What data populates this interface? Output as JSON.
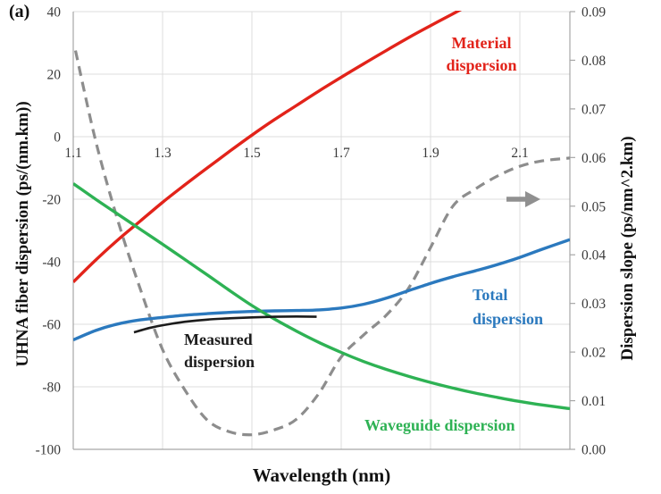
{
  "figure": {
    "panel_label": "(a)"
  },
  "chart_data": {
    "type": "line",
    "title": "",
    "xlabel": "Wavelength (nm)",
    "ylabel_left": "UHNA fiber dispersion (ps/(nm.km))",
    "ylabel_right": "Dispersion slope (ps/nm^2.km)",
    "xlim": [
      1.1,
      2.212
    ],
    "ylim_left": [
      -100,
      40
    ],
    "ylim_right": [
      0,
      0.09
    ],
    "grid": true,
    "legend_position": "inline-annotations",
    "x_ticks": {
      "values": [
        1.1,
        1.3,
        1.5,
        1.7,
        1.9,
        2.1
      ],
      "labels": [
        "1.1",
        "1.3",
        "1.5",
        "1.7",
        "1.9",
        "2.1"
      ]
    },
    "y_ticks_left": {
      "values": [
        40,
        20,
        0,
        -20,
        -40,
        -60,
        -80,
        -100
      ],
      "labels": [
        "40",
        "20",
        "0",
        "-20",
        "-40",
        "-60",
        "-80",
        "-100"
      ]
    },
    "y_ticks_right": {
      "values": [
        0.09,
        0.08,
        0.07,
        0.06,
        0.05,
        0.04,
        0.03,
        0.02,
        0.01,
        0.0
      ],
      "labels": [
        "0.09",
        "0.08",
        "0.07",
        "0.06",
        "0.05",
        "0.04",
        "0.03",
        "0.02",
        "0.01",
        "0.00"
      ]
    },
    "series": [
      {
        "name": "Dispersion slope",
        "axis": "right",
        "color": "#8d8d8d",
        "dash": true,
        "x": [
          1.105,
          1.15,
          1.2,
          1.25,
          1.3,
          1.35,
          1.4,
          1.45,
          1.5,
          1.55,
          1.6,
          1.65,
          1.7,
          1.75,
          1.8,
          1.85,
          1.9,
          1.95,
          2.0,
          2.05,
          2.1,
          2.15,
          2.212
        ],
        "y": [
          0.082,
          0.0635,
          0.047,
          0.033,
          0.0205,
          0.0122,
          0.006,
          0.0036,
          0.003,
          0.004,
          0.0062,
          0.0115,
          0.019,
          0.0235,
          0.0275,
          0.033,
          0.0415,
          0.05,
          0.0535,
          0.0562,
          0.0582,
          0.0593,
          0.0599
        ]
      },
      {
        "name": "Material dispersion",
        "axis": "left",
        "color": "#e2231a",
        "dash": false,
        "x": [
          1.1,
          1.15,
          1.2,
          1.25,
          1.3,
          1.35,
          1.4,
          1.45,
          1.5,
          1.55,
          1.6,
          1.65,
          1.7,
          1.75,
          1.8,
          1.85,
          1.9,
          1.95,
          1.985
        ],
        "y": [
          -46.5,
          -39.5,
          -33.0,
          -27.0,
          -21.0,
          -15.4,
          -10.0,
          -4.7,
          0.5,
          5.4,
          10.0,
          14.6,
          19.0,
          23.3,
          27.5,
          31.6,
          35.5,
          39.3,
          42.0
        ]
      },
      {
        "name": "Total dispersion",
        "axis": "left",
        "color": "#2b79be",
        "dash": false,
        "x": [
          1.1,
          1.15,
          1.2,
          1.25,
          1.3,
          1.35,
          1.4,
          1.45,
          1.5,
          1.55,
          1.6,
          1.65,
          1.7,
          1.75,
          1.8,
          1.85,
          1.9,
          1.95,
          2.0,
          2.05,
          2.1,
          2.15,
          2.212
        ],
        "y": [
          -65.0,
          -62.0,
          -59.9,
          -58.6,
          -57.8,
          -57.1,
          -56.6,
          -56.2,
          -55.9,
          -55.7,
          -55.6,
          -55.4,
          -54.8,
          -53.6,
          -51.7,
          -49.3,
          -46.9,
          -44.8,
          -42.9,
          -40.9,
          -38.6,
          -36.0,
          -32.9
        ]
      },
      {
        "name": "Waveguide dispersion",
        "axis": "left",
        "color": "#2eb254",
        "dash": false,
        "x": [
          1.1,
          1.15,
          1.2,
          1.25,
          1.3,
          1.35,
          1.4,
          1.45,
          1.5,
          1.55,
          1.6,
          1.65,
          1.7,
          1.75,
          1.8,
          1.85,
          1.9,
          1.95,
          2.0,
          2.05,
          2.1,
          2.15,
          2.212
        ],
        "y": [
          -15.0,
          -20.0,
          -24.8,
          -29.6,
          -34.4,
          -39.3,
          -44.2,
          -49.2,
          -54.0,
          -58.3,
          -62.2,
          -65.8,
          -69.0,
          -71.9,
          -74.4,
          -76.6,
          -78.6,
          -80.4,
          -82.0,
          -83.4,
          -84.7,
          -85.8,
          -87.0
        ]
      },
      {
        "name": "Measured dispersion",
        "axis": "left",
        "color": "#1c1c1c",
        "dash": false,
        "x": [
          1.236,
          1.27,
          1.3,
          1.35,
          1.4,
          1.45,
          1.5,
          1.55,
          1.6,
          1.645
        ],
        "y": [
          -62.6,
          -61.2,
          -60.3,
          -59.2,
          -58.5,
          -58.1,
          -57.8,
          -57.6,
          -57.5,
          -57.6
        ]
      }
    ],
    "annotations": {
      "material": {
        "text": "Material\ndispersion",
        "color": "#e2231a"
      },
      "total": {
        "text": "Total\ndispersion",
        "color": "#2b79be"
      },
      "measured": {
        "text": "Measured\ndispersion",
        "color": "#1c1c1c"
      },
      "waveguide": {
        "text": "Waveguide dispersion",
        "color": "#2eb254"
      },
      "slope_axis_arrow_color": "#909090"
    },
    "style_hints": {
      "gridline_color": "#dcdcdc",
      "spine_color": "#a6a6a6",
      "tick_label_color": "#3a3a3a"
    }
  }
}
